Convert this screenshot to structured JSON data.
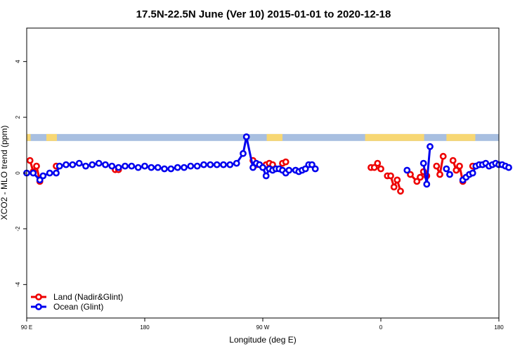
{
  "chart_data": {
    "type": "line",
    "title": "17.5N-22.5N June (Ver 10)   2015-01-01 to 2020-12-18",
    "xlabel": "Longitude (deg E)",
    "ylabel": "XCO2 - MLO trend (ppm)",
    "xlim": [
      90,
      450
    ],
    "ylim": [
      -5.2,
      5.2
    ],
    "x_ticks": [
      {
        "value": 90,
        "label": "90 E"
      },
      {
        "value": 180,
        "label": "180"
      },
      {
        "value": 270,
        "label": "90 W"
      },
      {
        "value": 360,
        "label": "0"
      },
      {
        "value": 450,
        "label": "90 E"
      }
    ],
    "x_ticks_extra": [
      {
        "value": 450,
        "label": "180"
      }
    ],
    "y_ticks": [
      {
        "value": -4,
        "label": "-4"
      },
      {
        "value": -2,
        "label": "-2"
      },
      {
        "value": 0,
        "label": "0"
      },
      {
        "value": 2,
        "label": "2"
      },
      {
        "value": 4,
        "label": "4"
      }
    ],
    "surface_band": {
      "ymin": 1.15,
      "ymax": 1.4,
      "ocean_color": "#a8bfe0",
      "land_color": "#f7d774",
      "land_spans": [
        [
          90,
          93
        ],
        [
          105,
          113
        ],
        [
          273,
          285
        ],
        [
          348,
          393
        ],
        [
          410,
          432
        ]
      ]
    },
    "series": [
      {
        "name": "Land (Nadir&Glint)",
        "color": "#ee0000",
        "segments": [
          [
            [
              92.5,
              0.45
            ],
            [
              95,
              0.05
            ],
            [
              97.5,
              0.25
            ],
            [
              100,
              -0.3
            ]
          ],
          [
            [
              112.5,
              0.25
            ]
          ],
          [
            [
              157.5,
              0.12
            ],
            [
              160,
              0.12
            ]
          ],
          [
            [
              262.5,
              0.45
            ],
            [
              265,
              0.3
            ]
          ],
          [
            [
              272.5,
              0.3
            ],
            [
              275,
              0.35
            ],
            [
              277.5,
              0.3
            ]
          ],
          [
            [
              285,
              0.35
            ],
            [
              287.5,
              0.4
            ]
          ],
          [
            [
              352.5,
              0.2
            ],
            [
              355,
              0.2
            ],
            [
              357.5,
              0.35
            ],
            [
              360,
              0.15
            ]
          ],
          [
            [
              365,
              -0.1
            ],
            [
              367.5,
              -0.1
            ],
            [
              370,
              -0.5
            ],
            [
              372.5,
              -0.25
            ],
            [
              375,
              -0.65
            ]
          ],
          [
            [
              382.5,
              -0.05
            ],
            [
              387.5,
              -0.3
            ],
            [
              390,
              -0.15
            ],
            [
              392.5,
              0.05
            ],
            [
              395,
              -0.1
            ]
          ],
          [
            [
              402.5,
              0.25
            ],
            [
              405,
              -0.05
            ],
            [
              407.5,
              0.6
            ]
          ],
          [
            [
              415,
              0.45
            ],
            [
              417.5,
              0.1
            ],
            [
              420,
              0.25
            ],
            [
              422.5,
              -0.3
            ]
          ],
          [
            [
              430,
              0.25
            ]
          ]
        ]
      },
      {
        "name": "Ocean (Glint)",
        "color": "#0000ee",
        "segments": [
          [
            [
              90,
              0.0
            ],
            [
              95,
              0.0
            ],
            [
              100,
              -0.25
            ],
            [
              102.5,
              -0.1
            ],
            [
              107.5,
              0.0
            ],
            [
              112.5,
              0.0
            ],
            [
              115,
              0.25
            ],
            [
              120,
              0.3
            ],
            [
              125,
              0.3
            ],
            [
              130,
              0.35
            ],
            [
              135,
              0.25
            ],
            [
              140,
              0.3
            ],
            [
              145,
              0.35
            ],
            [
              150,
              0.3
            ],
            [
              155,
              0.25
            ],
            [
              160,
              0.2
            ],
            [
              165,
              0.25
            ],
            [
              170,
              0.25
            ],
            [
              175,
              0.2
            ],
            [
              180,
              0.25
            ],
            [
              185,
              0.2
            ],
            [
              190,
              0.2
            ],
            [
              195,
              0.15
            ],
            [
              200,
              0.15
            ],
            [
              205,
              0.2
            ],
            [
              210,
              0.2
            ],
            [
              215,
              0.25
            ],
            [
              220,
              0.25
            ],
            [
              225,
              0.3
            ],
            [
              230,
              0.3
            ],
            [
              235,
              0.3
            ],
            [
              240,
              0.3
            ],
            [
              245,
              0.3
            ],
            [
              250,
              0.35
            ],
            [
              255,
              0.7
            ],
            [
              257.5,
              1.3
            ],
            [
              262.5,
              0.2
            ],
            [
              265,
              0.35
            ],
            [
              267.5,
              0.3
            ],
            [
              270,
              0.2
            ],
            [
              272.5,
              -0.1
            ],
            [
              275,
              0.15
            ],
            [
              277.5,
              0.1
            ],
            [
              280,
              0.15
            ],
            [
              282.5,
              0.15
            ],
            [
              285,
              0.1
            ],
            [
              287.5,
              0.0
            ],
            [
              290,
              0.1
            ],
            [
              295,
              0.1
            ],
            [
              297.5,
              0.05
            ],
            [
              300,
              0.1
            ],
            [
              302.5,
              0.15
            ],
            [
              305,
              0.3
            ],
            [
              307.5,
              0.3
            ],
            [
              310,
              0.15
            ]
          ],
          [
            [
              380,
              0.1
            ]
          ],
          [
            [
              392.5,
              0.35
            ],
            [
              395,
              -0.4
            ],
            [
              397.5,
              0.95
            ]
          ],
          [
            [
              410,
              0.15
            ],
            [
              412.5,
              -0.05
            ]
          ],
          [
            [
              422.5,
              -0.25
            ],
            [
              425,
              -0.15
            ],
            [
              427.5,
              -0.05
            ],
            [
              430,
              0.0
            ],
            [
              432.5,
              0.25
            ],
            [
              435,
              0.3
            ],
            [
              437.5,
              0.3
            ],
            [
              440,
              0.35
            ],
            [
              442.5,
              0.25
            ],
            [
              445,
              0.3
            ],
            [
              447.5,
              0.35
            ],
            [
              450,
              0.3
            ],
            [
              452.5,
              0.3
            ],
            [
              455,
              0.25
            ],
            [
              457.5,
              0.2
            ]
          ]
        ]
      }
    ],
    "legend": {
      "position": "bottom-left",
      "entries": [
        "Land (Nadir&Glint)",
        "Ocean (Glint)"
      ]
    }
  }
}
